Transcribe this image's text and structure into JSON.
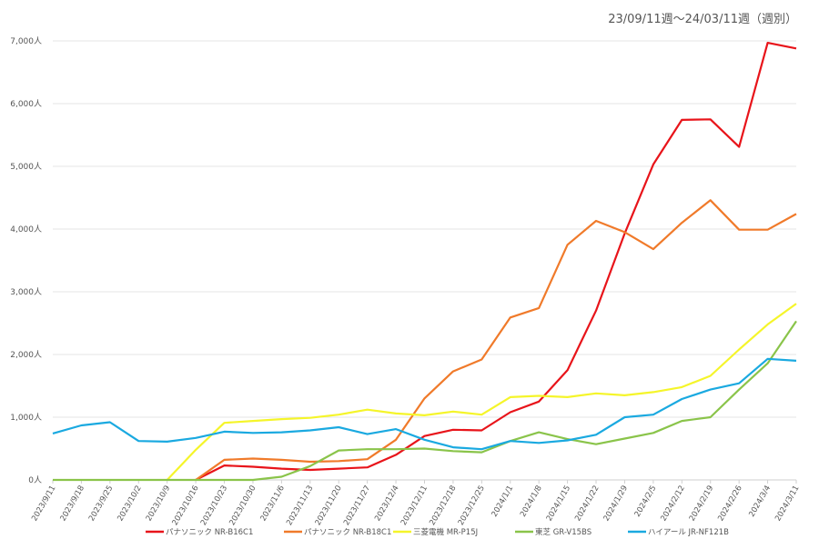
{
  "chart_data": {
    "type": "line",
    "title": "",
    "subtitle": "23/09/11週～24/03/11週（週別）",
    "xlabel": "",
    "ylabel": "",
    "ylim": [
      0,
      7000
    ],
    "yticks": [
      0,
      1000,
      2000,
      3000,
      4000,
      5000,
      6000,
      7000
    ],
    "ytick_labels": [
      "0人",
      "1,000人",
      "2,000人",
      "3,000人",
      "4,000人",
      "5,000人",
      "6,000人",
      "7,000人"
    ],
    "grid": true,
    "legend_position": "bottom",
    "categories": [
      "2023/9/11",
      "2023/9/18",
      "2023/9/25",
      "2023/10/2",
      "2023/10/9",
      "2023/10/16",
      "2023/10/23",
      "2023/10/30",
      "2023/11/6",
      "2023/11/13",
      "2023/11/20",
      "2023/11/27",
      "2023/12/4",
      "2023/12/11",
      "2023/12/18",
      "2023/12/25",
      "2024/1/1",
      "2024/1/8",
      "2024/1/15",
      "2024/1/22",
      "2024/1/29",
      "2024/2/5",
      "2024/2/12",
      "2024/2/19",
      "2024/2/26",
      "2024/3/4",
      "2024/3/11"
    ],
    "series": [
      {
        "name": "パナソニック NR-B16C1",
        "color": "#e8141a",
        "values": [
          null,
          null,
          null,
          null,
          null,
          0,
          230,
          210,
          180,
          160,
          180,
          200,
          400,
          700,
          800,
          790,
          1080,
          1250,
          1750,
          2700,
          3930,
          5030,
          5740,
          5750,
          5310,
          6970,
          6880
        ]
      },
      {
        "name": "パナソニック NR-B18C1",
        "color": "#f07a2a",
        "values": [
          null,
          null,
          null,
          null,
          null,
          0,
          320,
          340,
          320,
          290,
          300,
          330,
          640,
          1300,
          1730,
          1920,
          2590,
          2740,
          3750,
          4130,
          3950,
          3680,
          4100,
          4460,
          3990,
          3990,
          4240
        ]
      },
      {
        "name": "三菱電機 MR-P15J",
        "color": "#f5f52a",
        "values": [
          null,
          null,
          null,
          null,
          0,
          480,
          910,
          940,
          970,
          990,
          1040,
          1120,
          1060,
          1030,
          1090,
          1040,
          1320,
          1340,
          1320,
          1380,
          1350,
          1400,
          1480,
          1660,
          2080,
          2480,
          2810
        ]
      },
      {
        "name": "東芝 GR-V15BS",
        "color": "#8ac44a",
        "values": [
          0,
          0,
          0,
          0,
          0,
          0,
          0,
          0,
          50,
          220,
          470,
          490,
          490,
          500,
          460,
          440,
          620,
          760,
          650,
          570,
          660,
          750,
          940,
          1000,
          1440,
          1860,
          2530
        ]
      },
      {
        "name": "ハイアール JR-NF121B",
        "color": "#1aa9e0",
        "values": [
          740,
          870,
          920,
          620,
          610,
          670,
          770,
          750,
          760,
          790,
          840,
          730,
          810,
          640,
          520,
          490,
          620,
          590,
          630,
          720,
          1000,
          1040,
          1290,
          1440,
          1540,
          1930,
          1900
        ]
      }
    ]
  }
}
